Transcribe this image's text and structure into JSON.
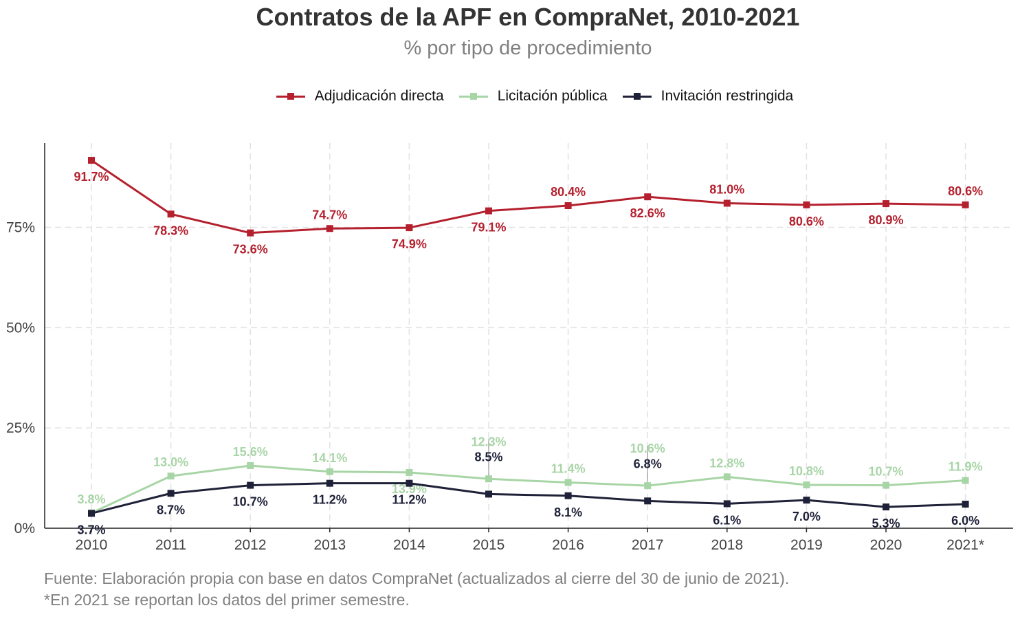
{
  "chart_data": {
    "type": "line",
    "title": "Contratos de la APF en CompraNet, 2010-2021",
    "subtitle": "% por tipo de procedimiento",
    "categories": [
      "2010",
      "2011",
      "2012",
      "2013",
      "2014",
      "2015",
      "2016",
      "2017",
      "2018",
      "2019",
      "2020",
      "2021*"
    ],
    "ylim": [
      0,
      96
    ],
    "yticks": [
      0,
      25,
      50,
      75
    ],
    "ytick_labels": [
      "0%",
      "25%",
      "50%",
      "75%"
    ],
    "grid": true,
    "legend_position": "top",
    "series": [
      {
        "name": "Adjudicación directa",
        "color": "#b5202e",
        "values": [
          91.7,
          78.3,
          73.6,
          74.7,
          74.9,
          79.1,
          80.4,
          82.6,
          81.0,
          80.6,
          80.9,
          80.6
        ],
        "labels": [
          "91.7%",
          "78.3%",
          "73.6%",
          "74.7%",
          "74.9%",
          "79.1%",
          "80.4%",
          "82.6%",
          "81.0%",
          "80.6%",
          "80.9%",
          "80.6%"
        ],
        "label_side": [
          "below",
          "below",
          "below",
          "above",
          "below",
          "below",
          "above",
          "below",
          "above",
          "below",
          "below",
          "above"
        ]
      },
      {
        "name": "Licitación pública",
        "color": "#a8d5a6",
        "values": [
          3.8,
          13.0,
          15.6,
          14.1,
          13.9,
          12.3,
          11.4,
          10.6,
          12.8,
          10.8,
          10.7,
          11.9
        ],
        "labels": [
          "3.8%",
          "13.0%",
          "15.6%",
          "14.1%",
          "13.9%",
          "12.3%",
          "11.4%",
          "10.6%",
          "12.8%",
          "10.8%",
          "10.7%",
          "11.9%"
        ],
        "label_side": [
          "above",
          "above",
          "above",
          "above",
          "below",
          "above2",
          "above",
          "above2",
          "above",
          "above",
          "above",
          "above"
        ]
      },
      {
        "name": "Invitación restringida",
        "color": "#1e2138",
        "values": [
          3.7,
          8.7,
          10.7,
          11.2,
          11.2,
          8.5,
          8.1,
          6.8,
          6.1,
          7.0,
          5.3,
          6.0
        ],
        "labels": [
          "3.7%",
          "8.7%",
          "10.7%",
          "11.2%",
          "11.2%",
          "8.5%",
          "8.1%",
          "6.8%",
          "6.1%",
          "7.0%",
          "5.3%",
          "6.0%"
        ],
        "label_side": [
          "below",
          "below",
          "below",
          "below",
          "below",
          "above2",
          "below",
          "above2",
          "below",
          "below",
          "below",
          "below"
        ]
      }
    ]
  },
  "caption": {
    "line1": "Fuente: Elaboración propia con base en datos CompraNet (actualizados al cierre del 30 de junio de 2021).",
    "line2": "*En 2021 se reportan los datos del primer semestre."
  }
}
